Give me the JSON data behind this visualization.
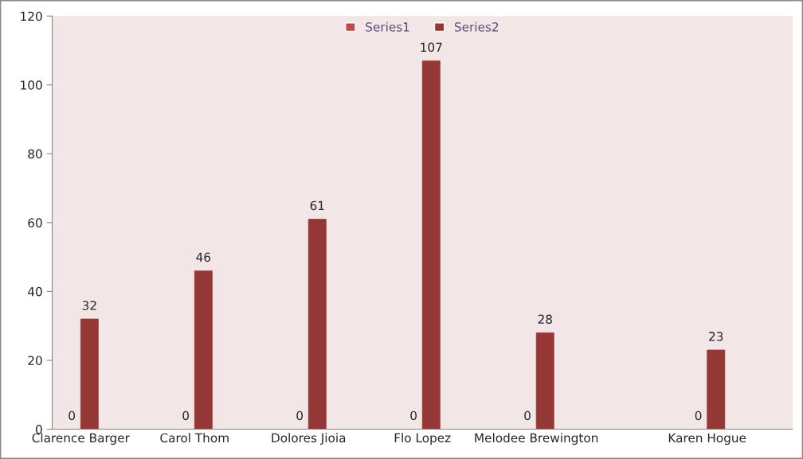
{
  "chart_data": {
    "type": "bar",
    "categories": [
      "Clarence Barger",
      null,
      "Carol Thom",
      null,
      "Dolores Jioia",
      null,
      "Flo Lopez",
      null,
      "Melodee Brewington",
      null,
      null,
      "Karen Hogue",
      null
    ],
    "series": [
      {
        "name": "Series1",
        "color": "#be4b48",
        "values": [
          0,
          null,
          0,
          null,
          0,
          null,
          0,
          null,
          0,
          null,
          null,
          0,
          null
        ]
      },
      {
        "name": "Series2",
        "color": "#953735",
        "values": [
          32,
          null,
          46,
          null,
          61,
          null,
          107,
          null,
          28,
          null,
          null,
          23,
          null
        ]
      }
    ],
    "ylim": [
      0,
      120
    ],
    "yticks": [
      0,
      20,
      40,
      60,
      80,
      100,
      120
    ],
    "data_labels": true,
    "legend": "top",
    "grid": false
  }
}
